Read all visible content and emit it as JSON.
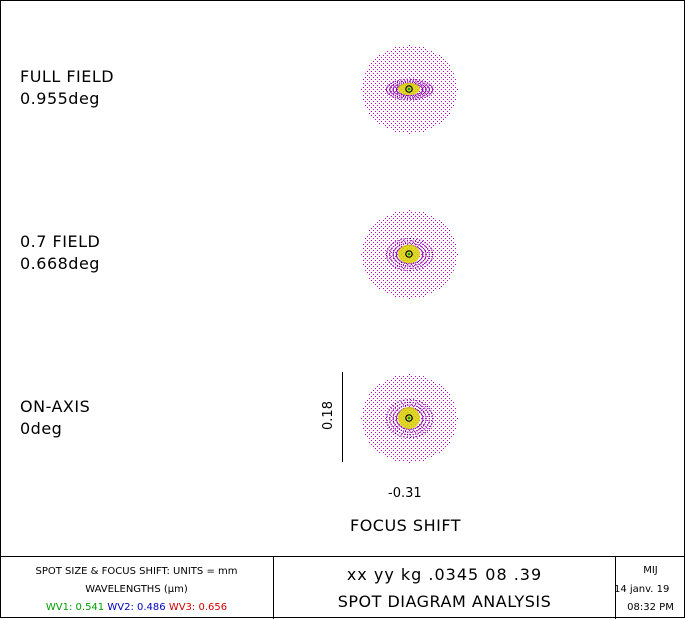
{
  "fields": [
    {
      "name": "FULL FIELD",
      "angle": "0.955deg"
    },
    {
      "name": "0.7 FIELD",
      "angle": "0.668deg"
    },
    {
      "name": "ON-AXIS",
      "angle": "0deg"
    }
  ],
  "scale": {
    "vertical": "0.18",
    "horizontal": "-0.31"
  },
  "focus_label": "FOCUS SHIFT",
  "footer": {
    "units": "SPOT SIZE & FOCUS SHIFT: UNITS = mm",
    "wavelengths_title": "WAVELENGTHS (µm)",
    "wv1": "WV1: 0.541",
    "wv2": "WV2: 0.486",
    "wv3": "WV3: 0.656",
    "project": "xx yy kg .0345 08 .39",
    "title": "SPOT DIAGRAM ANALYSIS",
    "designer": "MIJ",
    "date": "14 janv. 19",
    "time": "08:32 PM"
  },
  "colors": {
    "wv1": "#00a000",
    "wv2": "#0000c0",
    "wv3": "#d00000",
    "outer_spots": "#c000c0",
    "core_spots": "#d8d000"
  }
}
